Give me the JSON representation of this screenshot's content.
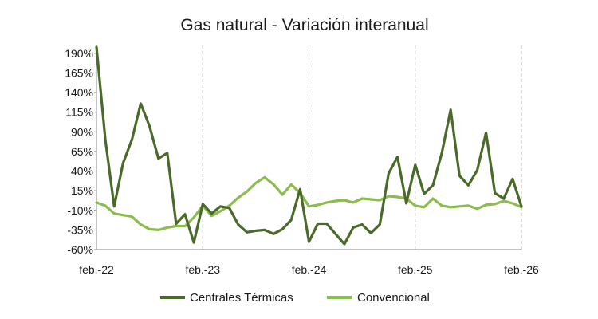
{
  "chart_data": {
    "type": "line",
    "title": "Gas natural - Variación interanual",
    "xlabel": "",
    "ylabel": "",
    "x_tick_labels": [
      "feb.-22",
      "feb.-23",
      "feb.-24",
      "feb.-25",
      "feb.-26"
    ],
    "y_tick_labels": [
      "190%",
      "165%",
      "140%",
      "115%",
      "90%",
      "65%",
      "40%",
      "15%",
      "-10%",
      "-35%",
      "-60%"
    ],
    "ylim": [
      -60,
      200
    ],
    "y_unit": "%",
    "x": [
      "feb.-22",
      "mar.-22",
      "abr.-22",
      "may.-22",
      "jun.-22",
      "jul.-22",
      "ago.-22",
      "sep.-22",
      "oct.-22",
      "nov.-22",
      "dic.-22",
      "ene.-23",
      "feb.-23",
      "mar.-23",
      "abr.-23",
      "may.-23",
      "jun.-23",
      "jul.-23",
      "ago.-23",
      "sep.-23",
      "oct.-23",
      "nov.-23",
      "dic.-23",
      "ene.-24",
      "feb.-24",
      "mar.-24",
      "abr.-24",
      "may.-24",
      "jun.-24",
      "jul.-24",
      "ago.-24",
      "sep.-24",
      "oct.-24",
      "nov.-24",
      "dic.-24",
      "ene.-25",
      "feb.-25",
      "mar.-25",
      "abr.-25",
      "may.-25",
      "jun.-25",
      "jul.-25",
      "ago.-25",
      "sep.-25",
      "oct.-25",
      "nov.-25",
      "dic.-25",
      "ene.-26",
      "feb.-26"
    ],
    "grid": {
      "horizontal": false,
      "vertical": true,
      "vertical_style": "dashed"
    },
    "legend_position": "bottom",
    "series": [
      {
        "name": "Centrales Térmicas",
        "color": "#4a6a2a",
        "values": [
          198,
          80,
          -5,
          50,
          80,
          126,
          97,
          56,
          63,
          -27,
          -15,
          -51,
          -2,
          -14,
          -5,
          -7,
          -28,
          -38,
          -36,
          -35,
          -40,
          -34,
          -22,
          17,
          -50,
          -27,
          -27,
          -40,
          -53,
          -32,
          -28,
          -39,
          -28,
          37,
          58,
          -1,
          48,
          11,
          22,
          63,
          118,
          34,
          22,
          41,
          89,
          12,
          5,
          30,
          -5
        ]
      },
      {
        "name": "Convencional",
        "color": "#8bbd4e",
        "values": [
          0,
          -4,
          -14,
          -16,
          -18,
          -28,
          -34,
          -35,
          -32,
          -30,
          -30,
          -19,
          -4,
          -17,
          -11,
          -4,
          6,
          14,
          25,
          32,
          23,
          10,
          23,
          12,
          -5,
          -3,
          0,
          2,
          3,
          0,
          5,
          4,
          3,
          8,
          7,
          5,
          -4,
          -6,
          5,
          -4,
          -6,
          -5,
          -4,
          -8,
          -3,
          -2,
          2,
          -1,
          -6
        ]
      }
    ]
  }
}
